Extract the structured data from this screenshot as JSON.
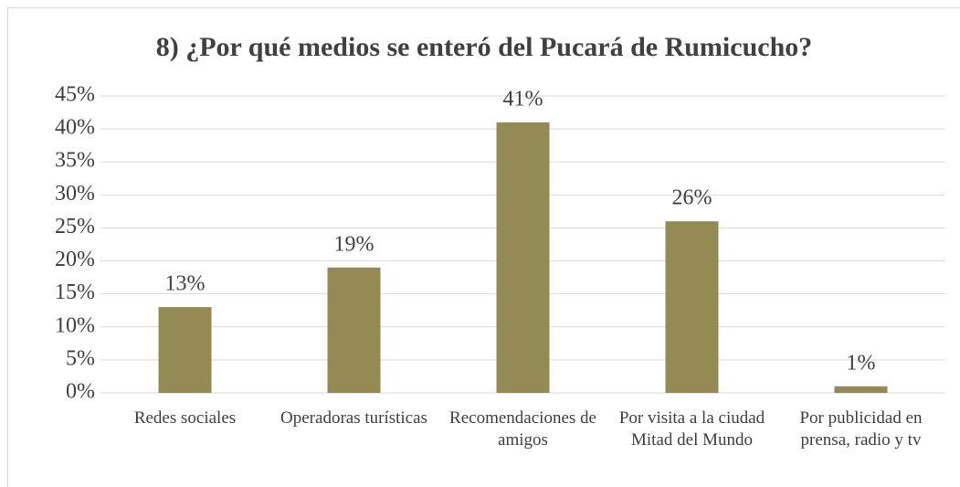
{
  "chart_data": {
    "type": "bar",
    "title": "8) ¿Por qué medios se enteró del Pucará de Rumicucho?",
    "categories": [
      "Redes sociales",
      "Operadoras turísticas",
      "Recomendaciones de amigos",
      "Por visita a la ciudad Mitad del Mundo",
      "Por publicidad en prensa, radio y tv"
    ],
    "values": [
      13,
      19,
      41,
      26,
      1
    ],
    "value_labels": [
      "13%",
      "19%",
      "41%",
      "26%",
      "1%"
    ],
    "color": "#948a54",
    "ylim": [
      0,
      45
    ],
    "yticks": [
      {
        "value": 0,
        "label": "0%"
      },
      {
        "value": 5,
        "label": "5%"
      },
      {
        "value": 10,
        "label": "10%"
      },
      {
        "value": 15,
        "label": "15%"
      },
      {
        "value": 20,
        "label": "20%"
      },
      {
        "value": 25,
        "label": "25%"
      },
      {
        "value": 30,
        "label": "30%"
      },
      {
        "value": 35,
        "label": "35%"
      },
      {
        "value": 40,
        "label": "40%"
      },
      {
        "value": 45,
        "label": "45%"
      }
    ],
    "grid": true
  }
}
